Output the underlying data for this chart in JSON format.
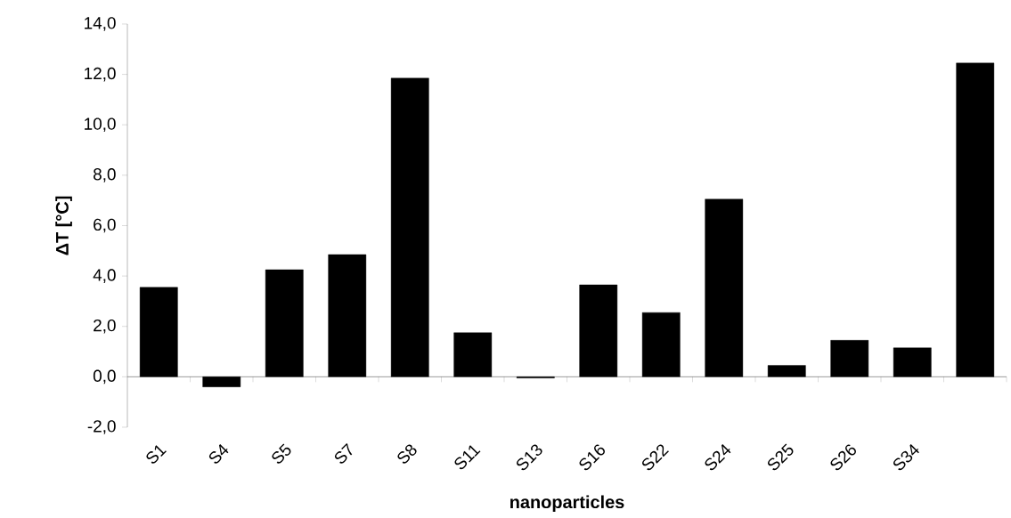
{
  "chart_data": {
    "type": "bar",
    "xlabel": "nanoparticles",
    "ylabel": "ΔT [°C]",
    "categories": [
      "S1",
      "S4",
      "S5",
      "S7",
      "S8",
      "S11",
      "S13",
      "S16",
      "S22",
      "S24",
      "S25",
      "S26",
      "S34",
      null
    ],
    "values": [
      3.55,
      -0.4,
      4.25,
      4.85,
      11.85,
      1.75,
      -0.05,
      3.65,
      2.55,
      7.05,
      0.45,
      1.45,
      1.15,
      12.45
    ],
    "color": "#000000",
    "ylim": [
      -2,
      14
    ],
    "yticks": [
      {
        "value": -2,
        "label": "-2,0"
      },
      {
        "value": 0,
        "label": "0,0"
      },
      {
        "value": 2,
        "label": "2,0"
      },
      {
        "value": 4,
        "label": "4,0"
      },
      {
        "value": 6,
        "label": "6,0"
      },
      {
        "value": 8,
        "label": "8,0"
      },
      {
        "value": 10,
        "label": "10,0"
      },
      {
        "value": 12,
        "label": "12,0"
      },
      {
        "value": 14,
        "label": "14,0"
      }
    ]
  }
}
